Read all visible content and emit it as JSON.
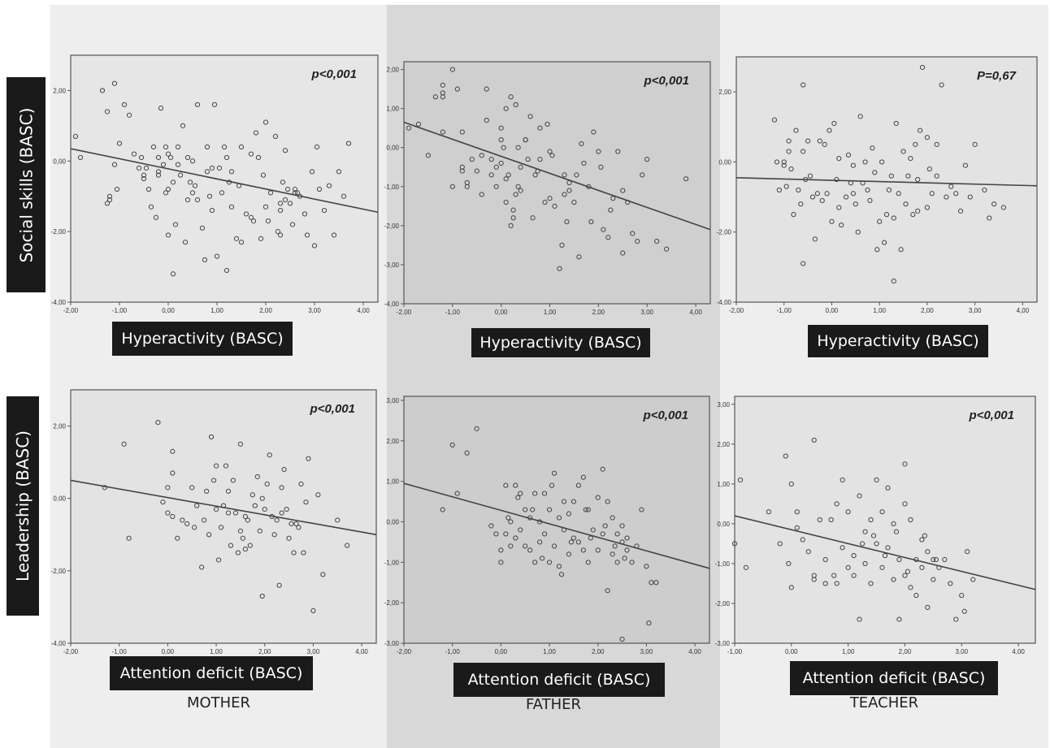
{
  "row_labels": [
    "Social skills (BASC)",
    "Leadership (BASC)"
  ],
  "column_labels": [
    "MOTHER",
    "FATHER",
    "TEACHER"
  ],
  "chart_data": [
    {
      "type": "scatter",
      "panel": "mother-hyperactivity",
      "xlabel": "Hyperactivity (BASC)",
      "annotation": "p<0,001",
      "xlim": [
        -2,
        4.3
      ],
      "ylim": [
        -4,
        3
      ],
      "xticks": [
        "-2,00",
        "-1,00",
        "0,00",
        "1,00",
        "2,00",
        "3,00",
        "4,00"
      ],
      "yticks": [
        "-4,00",
        "-2,00",
        "0,00",
        "2,00"
      ],
      "trend": [
        [
          -2,
          0.35
        ],
        [
          4.3,
          -1.45
        ]
      ],
      "x": [
        -1.9,
        -1.8,
        -1.35,
        -1.25,
        -1.25,
        -1.2,
        -1.2,
        -1.1,
        -1.1,
        -1.05,
        -1.0,
        -0.9,
        -0.8,
        -0.7,
        -0.6,
        -0.55,
        -0.5,
        -0.45,
        -0.4,
        -0.35,
        -0.3,
        -0.25,
        -0.2,
        -0.2,
        -0.15,
        -0.1,
        -0.05,
        -0.05,
        0.0,
        0.0,
        0.0,
        0.05,
        0.1,
        0.1,
        0.15,
        0.2,
        0.25,
        0.3,
        0.35,
        0.4,
        0.45,
        0.5,
        0.5,
        0.55,
        0.6,
        0.7,
        0.75,
        0.8,
        0.8,
        0.85,
        0.9,
        0.95,
        1.0,
        1.05,
        1.1,
        1.15,
        1.2,
        1.2,
        1.25,
        1.3,
        1.4,
        1.45,
        1.5,
        1.5,
        1.6,
        1.7,
        1.75,
        1.8,
        1.85,
        1.9,
        1.95,
        2.0,
        2.0,
        2.05,
        2.1,
        2.2,
        2.25,
        2.3,
        2.3,
        2.35,
        2.4,
        2.4,
        2.45,
        2.5,
        2.55,
        2.6,
        2.65,
        2.7,
        2.8,
        2.85,
        2.95,
        3.0,
        3.05,
        3.1,
        3.2,
        3.3,
        3.4,
        3.5,
        3.6,
        3.7,
        -0.5,
        1.3,
        0.6,
        0.4,
        2.3,
        0.9,
        -0.2,
        1.7,
        0.2,
        2.6
      ],
      "y": [
        0.7,
        0.1,
        2.0,
        1.4,
        -1.2,
        -1.0,
        -1.1,
        2.2,
        -0.1,
        -0.8,
        0.5,
        1.6,
        1.3,
        0.2,
        -0.2,
        0.1,
        -0.4,
        -0.2,
        -0.8,
        -1.3,
        0.4,
        -1.6,
        -0.3,
        0.1,
        1.5,
        -0.1,
        0.4,
        -0.9,
        -0.8,
        0.2,
        -2.1,
        0.1,
        -0.6,
        -3.2,
        -1.8,
        0.4,
        -0.4,
        1.0,
        -2.3,
        -1.1,
        -0.6,
        0.0,
        -0.9,
        -0.7,
        1.6,
        -1.9,
        -2.8,
        0.4,
        -0.3,
        -1.0,
        -1.4,
        1.6,
        -2.7,
        -0.2,
        -0.9,
        0.4,
        0.1,
        -3.1,
        -0.6,
        -1.3,
        -2.2,
        -0.7,
        0.4,
        -2.3,
        -1.5,
        0.2,
        -1.7,
        0.8,
        0.1,
        -2.2,
        -0.4,
        -1.3,
        1.1,
        -1.7,
        -0.9,
        0.7,
        -2.0,
        -2.1,
        -1.4,
        -0.6,
        0.3,
        -1.1,
        -0.8,
        -1.2,
        -1.8,
        -0.8,
        -0.9,
        -1.0,
        -1.5,
        -2.1,
        -0.3,
        -2.4,
        0.4,
        -0.8,
        -1.4,
        -0.7,
        -2.1,
        -0.3,
        -1.0,
        0.5,
        -0.5,
        -0.3,
        -1.1,
        0.1,
        -1.2,
        -0.2,
        -0.4,
        -1.6,
        -0.1,
        -0.9
      ],
      "position": [
        0,
        0
      ]
    },
    {
      "type": "scatter",
      "panel": "father-hyperactivity",
      "xlabel": "Hyperactivity (BASC)",
      "annotation": "p<0,001",
      "xlim": [
        -2,
        4.3
      ],
      "ylim": [
        -4,
        2.2
      ],
      "xticks": [
        "-2,00",
        "-1,00",
        "0,00",
        "1,00",
        "2,00",
        "3,00",
        "4,00"
      ],
      "yticks": [
        "-4,00",
        "-3,00",
        "-2,00",
        "-1,00",
        "0,00",
        "1,00",
        "2,00"
      ],
      "trend": [
        [
          -2,
          0.65
        ],
        [
          4.3,
          -2.1
        ]
      ],
      "x": [
        -1.9,
        -1.7,
        -1.5,
        -1.35,
        -1.2,
        -1.2,
        -1.2,
        -1.2,
        -1.0,
        -1.0,
        -0.9,
        -0.8,
        -0.8,
        -0.7,
        -0.7,
        -0.6,
        -0.5,
        -0.4,
        -0.3,
        -0.3,
        -0.2,
        -0.2,
        -0.1,
        -0.1,
        0.0,
        0.0,
        0.0,
        0.05,
        0.1,
        0.1,
        0.2,
        0.2,
        0.25,
        0.3,
        0.3,
        0.35,
        0.4,
        0.4,
        0.5,
        0.55,
        0.6,
        0.65,
        0.7,
        0.75,
        0.8,
        0.9,
        1.0,
        1.0,
        1.05,
        1.1,
        1.2,
        1.25,
        1.3,
        1.3,
        1.35,
        1.4,
        1.5,
        1.55,
        1.6,
        1.7,
        1.8,
        1.85,
        1.9,
        2.0,
        2.1,
        2.2,
        2.3,
        2.4,
        2.5,
        2.5,
        2.6,
        2.7,
        2.8,
        2.9,
        3.0,
        3.2,
        3.4,
        3.8,
        -0.4,
        0.25,
        0.5,
        1.4,
        0.8,
        0.35,
        -0.8,
        0.1,
        1.65,
        2.05,
        0.15,
        0.95,
        2.25
      ],
      "y": [
        0.5,
        0.6,
        -0.2,
        1.3,
        1.6,
        1.4,
        1.3,
        0.4,
        -1.0,
        2.0,
        1.5,
        -0.5,
        -0.6,
        -0.9,
        -1.0,
        -0.3,
        -0.6,
        -1.2,
        0.7,
        1.5,
        -0.3,
        -0.7,
        -1.0,
        -0.5,
        0.5,
        0.2,
        -0.4,
        0.0,
        -0.8,
        -1.4,
        -2.0,
        1.3,
        -1.8,
        -1.2,
        1.1,
        -1.0,
        -0.5,
        -1.1,
        0.2,
        -0.3,
        0.8,
        -1.8,
        -0.7,
        -0.6,
        0.5,
        -1.4,
        -0.1,
        -1.3,
        -0.2,
        -1.5,
        -3.1,
        -2.5,
        -0.7,
        -1.2,
        -1.9,
        -0.9,
        -1.4,
        -0.7,
        -2.8,
        -0.4,
        -1.0,
        -1.9,
        0.4,
        -0.1,
        -2.1,
        -2.3,
        -1.3,
        -0.1,
        -1.1,
        -2.7,
        -1.4,
        -2.2,
        -2.4,
        -0.7,
        -0.3,
        -2.4,
        -2.6,
        -0.8,
        -0.2,
        -1.6,
        0.2,
        -1.1,
        -0.3,
        0.0,
        0.4,
        1.0,
        0.1,
        -0.5,
        -0.7,
        0.6,
        -1.6
      ],
      "position": [
        0,
        1
      ]
    },
    {
      "type": "scatter",
      "panel": "teacher-hyperactivity",
      "xlabel": "Hyperactivity (BASC)",
      "annotation": "P=0,67",
      "xlim": [
        -2,
        4.3
      ],
      "ylim": [
        -4,
        3
      ],
      "xticks": [
        "-2,00",
        "-1,00",
        "0,00",
        "1,00",
        "2,00",
        "3,00",
        "4,00"
      ],
      "yticks": [
        "-4,00",
        "-2,00",
        "0,00",
        "2,00"
      ],
      "trend": [
        [
          -2,
          -0.45
        ],
        [
          4.3,
          -0.68
        ]
      ],
      "x": [
        -1.2,
        -1.15,
        -1.1,
        -1.0,
        -1.0,
        -0.95,
        -0.9,
        -0.85,
        -0.8,
        -0.75,
        -0.7,
        -0.65,
        -0.6,
        -0.6,
        -0.55,
        -0.5,
        -0.45,
        -0.4,
        -0.35,
        -0.3,
        -0.25,
        -0.2,
        -0.15,
        -0.1,
        -0.05,
        0.0,
        0.05,
        0.1,
        0.15,
        0.2,
        0.3,
        0.35,
        0.4,
        0.45,
        0.5,
        0.55,
        0.6,
        0.65,
        0.7,
        0.75,
        0.8,
        0.85,
        0.9,
        0.95,
        1.0,
        1.05,
        1.1,
        1.15,
        1.2,
        1.25,
        1.3,
        1.35,
        1.4,
        1.45,
        1.5,
        1.55,
        1.6,
        1.65,
        1.7,
        1.75,
        1.8,
        1.85,
        1.9,
        2.0,
        2.05,
        2.1,
        2.2,
        2.3,
        2.4,
        2.5,
        2.6,
        2.7,
        2.8,
        2.9,
        3.0,
        3.2,
        3.3,
        3.4,
        3.6,
        -0.6,
        1.8,
        2.2,
        1.3,
        0.15,
        0.45,
        -0.9,
        2.0
      ],
      "y": [
        1.2,
        0.0,
        -0.8,
        0.0,
        -0.1,
        -0.7,
        0.6,
        -0.2,
        -1.5,
        0.9,
        -0.8,
        -1.2,
        2.2,
        -2.9,
        -0.5,
        0.6,
        -0.4,
        -1.0,
        -2.2,
        -0.9,
        0.6,
        -1.1,
        0.5,
        -0.9,
        0.9,
        -1.7,
        1.1,
        -0.5,
        -1.3,
        -1.8,
        -1.0,
        0.2,
        -0.6,
        -0.9,
        -1.2,
        -2.0,
        1.3,
        -0.6,
        0.0,
        -0.8,
        -1.1,
        0.4,
        -0.3,
        -2.5,
        -1.7,
        0.0,
        -2.3,
        -1.5,
        -0.8,
        -0.4,
        -1.6,
        1.1,
        -0.9,
        -2.5,
        0.3,
        -1.2,
        -0.4,
        0.1,
        -1.5,
        0.5,
        -1.4,
        0.9,
        2.7,
        0.7,
        -0.2,
        -0.9,
        0.5,
        2.2,
        -1.0,
        -0.7,
        -0.9,
        -1.4,
        -0.1,
        -1.0,
        0.5,
        -0.8,
        -1.6,
        -1.2,
        -1.3,
        0.3,
        -0.5,
        -0.4,
        -3.4,
        0.1,
        -0.1,
        0.3,
        -1.3
      ],
      "position": [
        0,
        2
      ]
    },
    {
      "type": "scatter",
      "panel": "mother-attention",
      "xlabel": "Attention deficit (BASC)",
      "annotation": "p<0,001",
      "xlim": [
        -2,
        4.3
      ],
      "ylim": [
        -4,
        3
      ],
      "xticks": [
        "-2,00",
        "-1,00",
        "0,00",
        "1,00",
        "2,00",
        "3,00",
        "4,00"
      ],
      "yticks": [
        "-4,00",
        "-2,00",
        "0,00",
        "2,00"
      ],
      "trend": [
        [
          -2,
          0.5
        ],
        [
          4.3,
          -1.0
        ]
      ],
      "x": [
        -1.3,
        -0.9,
        -0.8,
        -0.2,
        -0.1,
        0.0,
        0.0,
        0.1,
        0.1,
        0.1,
        0.2,
        0.3,
        0.4,
        0.5,
        0.6,
        0.7,
        0.8,
        0.85,
        0.9,
        1.0,
        1.0,
        1.05,
        1.1,
        1.2,
        1.25,
        1.3,
        1.35,
        1.4,
        1.45,
        1.5,
        1.5,
        1.55,
        1.6,
        1.7,
        1.75,
        1.8,
        1.85,
        1.9,
        1.95,
        2.0,
        2.05,
        2.1,
        2.15,
        2.2,
        2.25,
        2.3,
        2.35,
        2.4,
        2.5,
        2.55,
        2.6,
        2.7,
        2.75,
        2.8,
        2.9,
        3.0,
        3.1,
        3.2,
        3.5,
        3.7,
        0.95,
        1.15,
        1.65,
        2.45,
        2.65,
        0.55,
        1.25,
        1.95,
        2.35,
        2.85,
        0.75,
        1.6
      ],
      "y": [
        0.3,
        1.5,
        -1.1,
        2.1,
        -0.1,
        -0.4,
        0.3,
        1.3,
        0.7,
        -0.5,
        -1.1,
        -0.6,
        -0.7,
        0.3,
        -0.2,
        -1.9,
        0.2,
        -1.0,
        1.7,
        0.9,
        -0.3,
        -1.7,
        -0.8,
        0.9,
        -0.4,
        -1.3,
        0.5,
        -0.4,
        -1.5,
        1.5,
        -0.9,
        -1.1,
        -0.5,
        -1.3,
        0.1,
        -0.2,
        0.6,
        -0.9,
        -2.7,
        -0.3,
        0.4,
        1.2,
        -0.5,
        -1.0,
        -0.6,
        -2.4,
        -0.4,
        0.8,
        -1.1,
        -0.7,
        -1.5,
        -0.8,
        0.4,
        -1.5,
        1.1,
        -3.1,
        0.1,
        -2.1,
        -0.6,
        -1.3,
        0.5,
        -0.2,
        -0.6,
        -0.3,
        -0.7,
        -0.8,
        0.2,
        0.0,
        0.3,
        -0.1,
        -0.6,
        -1.4
      ],
      "position": [
        1,
        0
      ]
    },
    {
      "type": "scatter",
      "panel": "father-attention",
      "xlabel": "Attention deficit (BASC)",
      "annotation": "p<0,001",
      "xlim": [
        -2,
        4.3
      ],
      "ylim": [
        -3,
        3.1
      ],
      "xticks": [
        "-2,00",
        "-1,00",
        "0,00",
        "1,00",
        "2,00",
        "3,00",
        "4,00"
      ],
      "yticks": [
        "-3,00",
        "-2,00",
        "-1,00",
        "0,00",
        "1,00",
        "2,00",
        "3,00"
      ],
      "trend": [
        [
          -2,
          0.95
        ],
        [
          4.3,
          -1.15
        ]
      ],
      "x": [
        -1.2,
        -1.0,
        -0.9,
        -0.7,
        -0.5,
        -0.2,
        -0.1,
        0.0,
        0.0,
        0.1,
        0.1,
        0.2,
        0.2,
        0.3,
        0.3,
        0.4,
        0.4,
        0.5,
        0.5,
        0.6,
        0.6,
        0.7,
        0.7,
        0.8,
        0.8,
        0.9,
        0.9,
        1.0,
        1.0,
        1.1,
        1.1,
        1.2,
        1.2,
        1.3,
        1.3,
        1.4,
        1.4,
        1.5,
        1.5,
        1.6,
        1.6,
        1.7,
        1.7,
        1.8,
        1.8,
        1.9,
        2.0,
        2.0,
        2.1,
        2.1,
        2.2,
        2.2,
        2.3,
        2.3,
        2.4,
        2.4,
        2.5,
        2.5,
        2.6,
        2.6,
        2.7,
        2.8,
        2.9,
        3.0,
        3.1,
        3.2,
        2.5,
        3.05,
        0.65,
        1.25,
        1.75,
        2.35,
        0.15,
        0.85,
        1.45,
        2.15,
        2.55,
        1.05,
        1.85,
        0.35
      ],
      "y": [
        0.3,
        1.9,
        0.7,
        1.7,
        2.3,
        -0.1,
        -0.3,
        -0.7,
        -1.0,
        0.9,
        -0.3,
        0.0,
        -0.6,
        0.9,
        -0.4,
        0.7,
        -0.2,
        -0.6,
        0.3,
        -0.7,
        0.1,
        0.7,
        -1.0,
        0.0,
        -0.5,
        0.7,
        -0.3,
        0.3,
        -1.0,
        1.2,
        -0.6,
        0.1,
        -1.1,
        0.5,
        -0.2,
        0.2,
        -0.8,
        0.5,
        -0.4,
        0.9,
        -0.5,
        1.1,
        -0.7,
        0.3,
        -1.0,
        -0.2,
        0.6,
        -0.7,
        1.3,
        -0.3,
        0.5,
        -1.7,
        0.1,
        -0.8,
        -0.3,
        -1.0,
        -0.5,
        -0.1,
        -0.4,
        -0.7,
        -1.0,
        -0.6,
        0.3,
        -1.1,
        -1.5,
        -1.5,
        -2.9,
        -2.5,
        0.3,
        -1.3,
        0.3,
        -0.6,
        0.1,
        -0.9,
        -0.5,
        -0.1,
        -0.9,
        0.9,
        -0.4,
        0.6
      ],
      "position": [
        1,
        1
      ]
    },
    {
      "type": "scatter",
      "panel": "teacher-attention",
      "xlabel": "Attention deficit (BASC)",
      "annotation": "p<0,001",
      "xlim": [
        -1,
        4.3
      ],
      "ylim": [
        -3,
        3.2
      ],
      "xticks": [
        "-1,00",
        "0,00",
        "1,00",
        "2,00",
        "3,00",
        "4,00"
      ],
      "yticks": [
        "-3,00",
        "-2,00",
        "-1,00",
        "0,00",
        "1,00",
        "2,00",
        "3,00"
      ],
      "trend": [
        [
          -1,
          0.2
        ],
        [
          4.3,
          -1.65
        ]
      ],
      "x": [
        -1.0,
        -0.9,
        -0.8,
        -0.4,
        -0.2,
        -0.1,
        0.0,
        0.0,
        0.1,
        0.1,
        0.2,
        0.3,
        0.4,
        0.4,
        0.5,
        0.6,
        0.6,
        0.7,
        0.8,
        0.8,
        0.9,
        0.9,
        1.0,
        1.0,
        1.1,
        1.1,
        1.2,
        1.2,
        1.3,
        1.3,
        1.4,
        1.4,
        1.5,
        1.5,
        1.6,
        1.6,
        1.7,
        1.7,
        1.8,
        1.8,
        1.9,
        1.9,
        2.0,
        2.0,
        2.1,
        2.1,
        2.2,
        2.2,
        2.3,
        2.3,
        2.4,
        2.4,
        2.5,
        2.5,
        2.6,
        2.7,
        2.8,
        2.9,
        3.0,
        3.1,
        3.2,
        2.0,
        0.4,
        1.45,
        2.35,
        1.65,
        0.75,
        2.55,
        1.25,
        2.05,
        -0.05,
        1.85,
        3.05
      ],
      "y": [
        -0.5,
        1.1,
        -1.1,
        0.3,
        -0.5,
        1.7,
        -1.6,
        1.0,
        0.3,
        -0.1,
        -0.4,
        -0.7,
        -1.3,
        2.1,
        0.1,
        -0.9,
        -1.5,
        0.1,
        0.5,
        -1.5,
        1.1,
        -0.6,
        0.3,
        -1.1,
        -0.8,
        -1.3,
        0.7,
        -2.4,
        -0.2,
        -1.0,
        0.1,
        -1.5,
        1.1,
        -0.5,
        0.3,
        -1.1,
        -0.6,
        0.9,
        -1.4,
        0.0,
        -2.4,
        -0.9,
        0.5,
        -1.3,
        0.1,
        -1.6,
        -0.9,
        -1.8,
        -0.4,
        -1.1,
        -0.7,
        -2.1,
        -0.9,
        -1.4,
        -1.1,
        -0.9,
        -1.5,
        -2.4,
        -1.8,
        -0.7,
        -1.4,
        1.5,
        -1.4,
        -0.3,
        -0.3,
        -0.8,
        -1.3,
        -0.9,
        -0.5,
        -1.2,
        -1.0,
        -0.2,
        -2.2
      ],
      "position": [
        1,
        2
      ]
    }
  ]
}
